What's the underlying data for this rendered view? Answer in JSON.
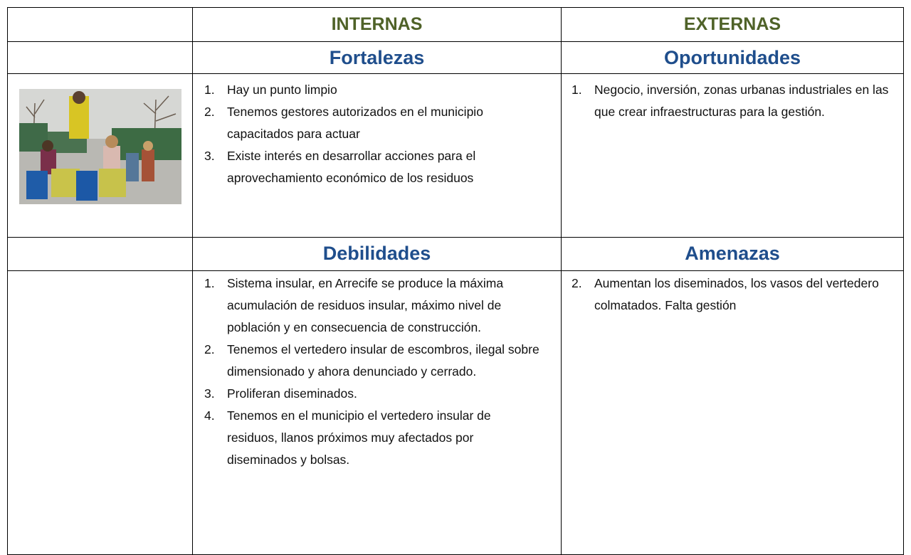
{
  "table": {
    "header_row": [
      "INTERNAS",
      "EXTERNAS"
    ],
    "quadrants": [
      {
        "title": "Fortalezas",
        "items": [
          {
            "number": "1.",
            "text": "Hay un punto limpio"
          },
          {
            "number": "2.",
            "text": "Tenemos gestores autorizados en el municipio capacitados para actuar"
          },
          {
            "number": "3.",
            "text": "Existe interés en desarrollar acciones para el aprovechamiento económico de los residuos"
          }
        ]
      },
      {
        "title": "Oportunidades",
        "items": [
          {
            "number": "1.",
            "text": "Negocio, inversión, zonas urbanas industriales en las que crear infraestructuras para la gestión."
          }
        ]
      },
      {
        "title": "Debilidades",
        "items": [
          {
            "number": "1.",
            "text": "Sistema insular, en Arrecife se produce la máxima acumulación de residuos insular, máximo nivel de población y en consecuencia de construcción."
          },
          {
            "number": "2.",
            "text": "Tenemos el vertedero insular de escombros, ilegal sobre dimensionado y ahora denunciado y cerrado."
          },
          {
            "number": "3.",
            "text": "Proliferan diseminados."
          },
          {
            "number": "4.",
            "text": "Tenemos en el municipio el vertedero insular de residuos, llanos próximos muy afectados por diseminados y bolsas."
          }
        ]
      },
      {
        "title": "Amenazas",
        "items": [
          {
            "number": "2.",
            "text": "Aumentan los diseminados, los vasos del vertedero colmatados. Falta gestión"
          }
        ]
      }
    ]
  }
}
